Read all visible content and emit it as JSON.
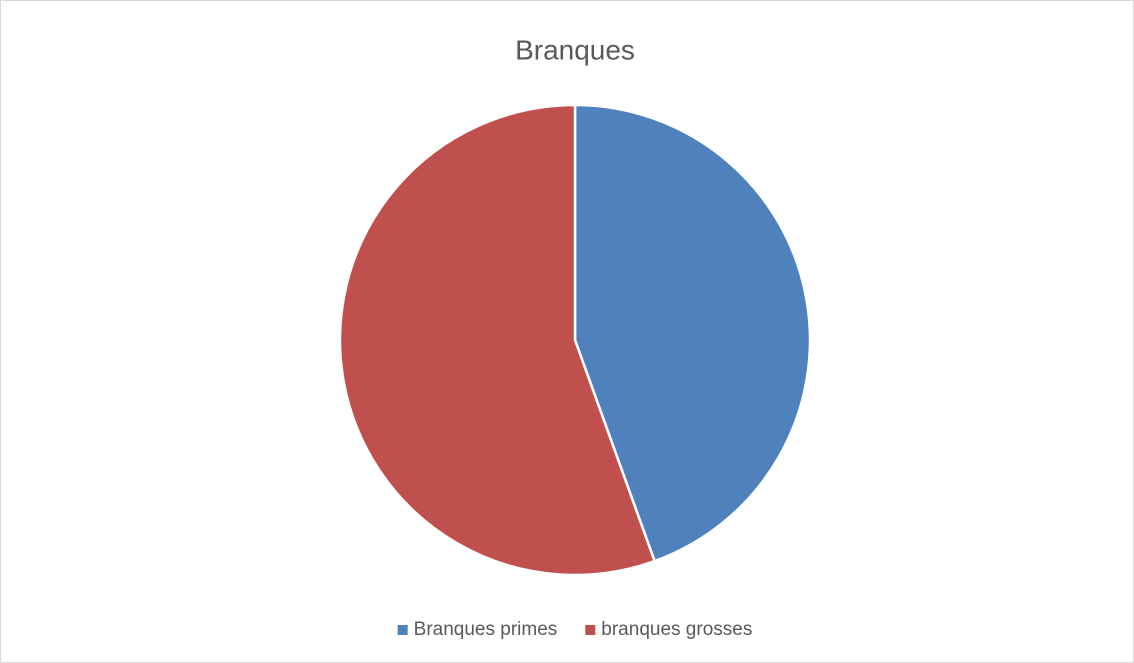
{
  "chart_data": {
    "type": "pie",
    "title": "Branques",
    "categories": [
      "Branques primes",
      "branques grosses"
    ],
    "values": [
      44.5,
      55.5
    ],
    "colors": [
      "#4f81bd",
      "#c0504d"
    ],
    "legend": "bottom"
  }
}
